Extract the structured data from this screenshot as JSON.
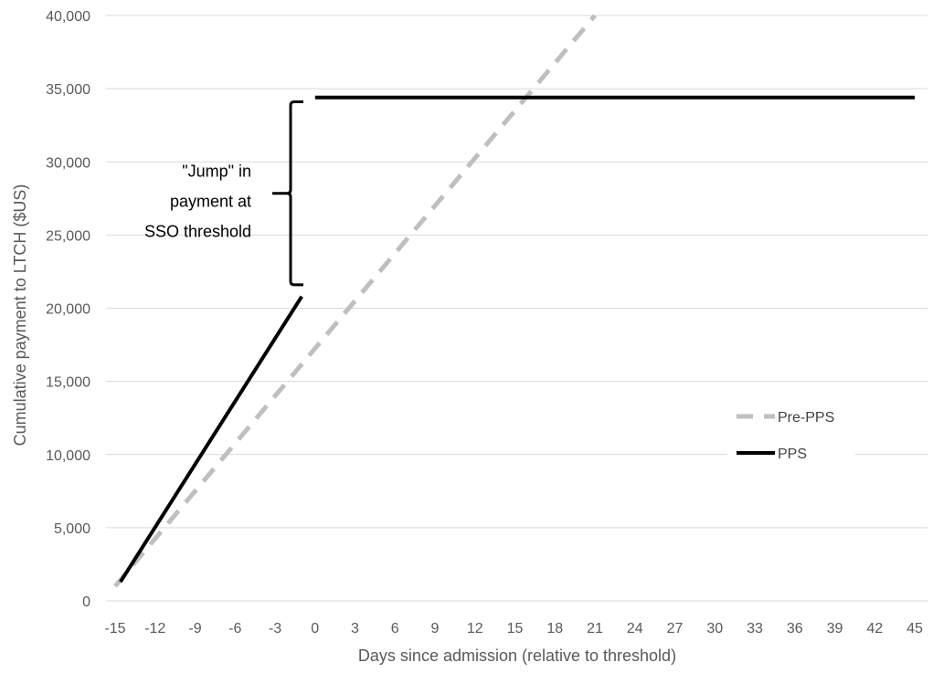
{
  "chart_data": {
    "type": "line",
    "title": "",
    "xlabel": "Days since admission (relative to threshold)",
    "ylabel": "Cumulative payment to LTCH ($US)",
    "xlim": [
      -15,
      45
    ],
    "ylim": [
      0,
      40000
    ],
    "x_ticks": [
      -15,
      -12,
      -9,
      -6,
      -3,
      0,
      3,
      6,
      9,
      12,
      15,
      18,
      21,
      24,
      27,
      30,
      33,
      36,
      39,
      42,
      45
    ],
    "y_ticks": [
      0,
      5000,
      10000,
      15000,
      20000,
      25000,
      30000,
      35000,
      40000
    ],
    "x_tick_labels": [
      "-15",
      "-12",
      "-9",
      "-6",
      "-3",
      "0",
      "3",
      "6",
      "9",
      "12",
      "15",
      "18",
      "21",
      "24",
      "27",
      "30",
      "33",
      "36",
      "39",
      "42",
      "45"
    ],
    "y_tick_labels": [
      "0",
      "5,000",
      "10,000",
      "15,000",
      "20,000",
      "25,000",
      "30,000",
      "35,000",
      "40,000"
    ],
    "grid": "horizontal",
    "legend_position": "right",
    "series": [
      {
        "name": "Pre-PPS",
        "color": "#bfbfbf",
        "style": "dashed",
        "segments": [
          [
            [
              -15,
              1000
            ],
            [
              21,
              40000
            ]
          ]
        ]
      },
      {
        "name": "PPS",
        "color": "#000000",
        "style": "solid",
        "segments": [
          [
            [
              -14.6,
              1300
            ],
            [
              -1,
              20800
            ]
          ],
          [
            [
              0,
              34400
            ],
            [
              45,
              34400
            ]
          ]
        ]
      }
    ],
    "annotations": [
      {
        "text_lines": [
          "\"Jump\" in",
          "payment at",
          "SSO threshold"
        ],
        "bracket_range": [
          21600,
          34100
        ]
      }
    ]
  }
}
